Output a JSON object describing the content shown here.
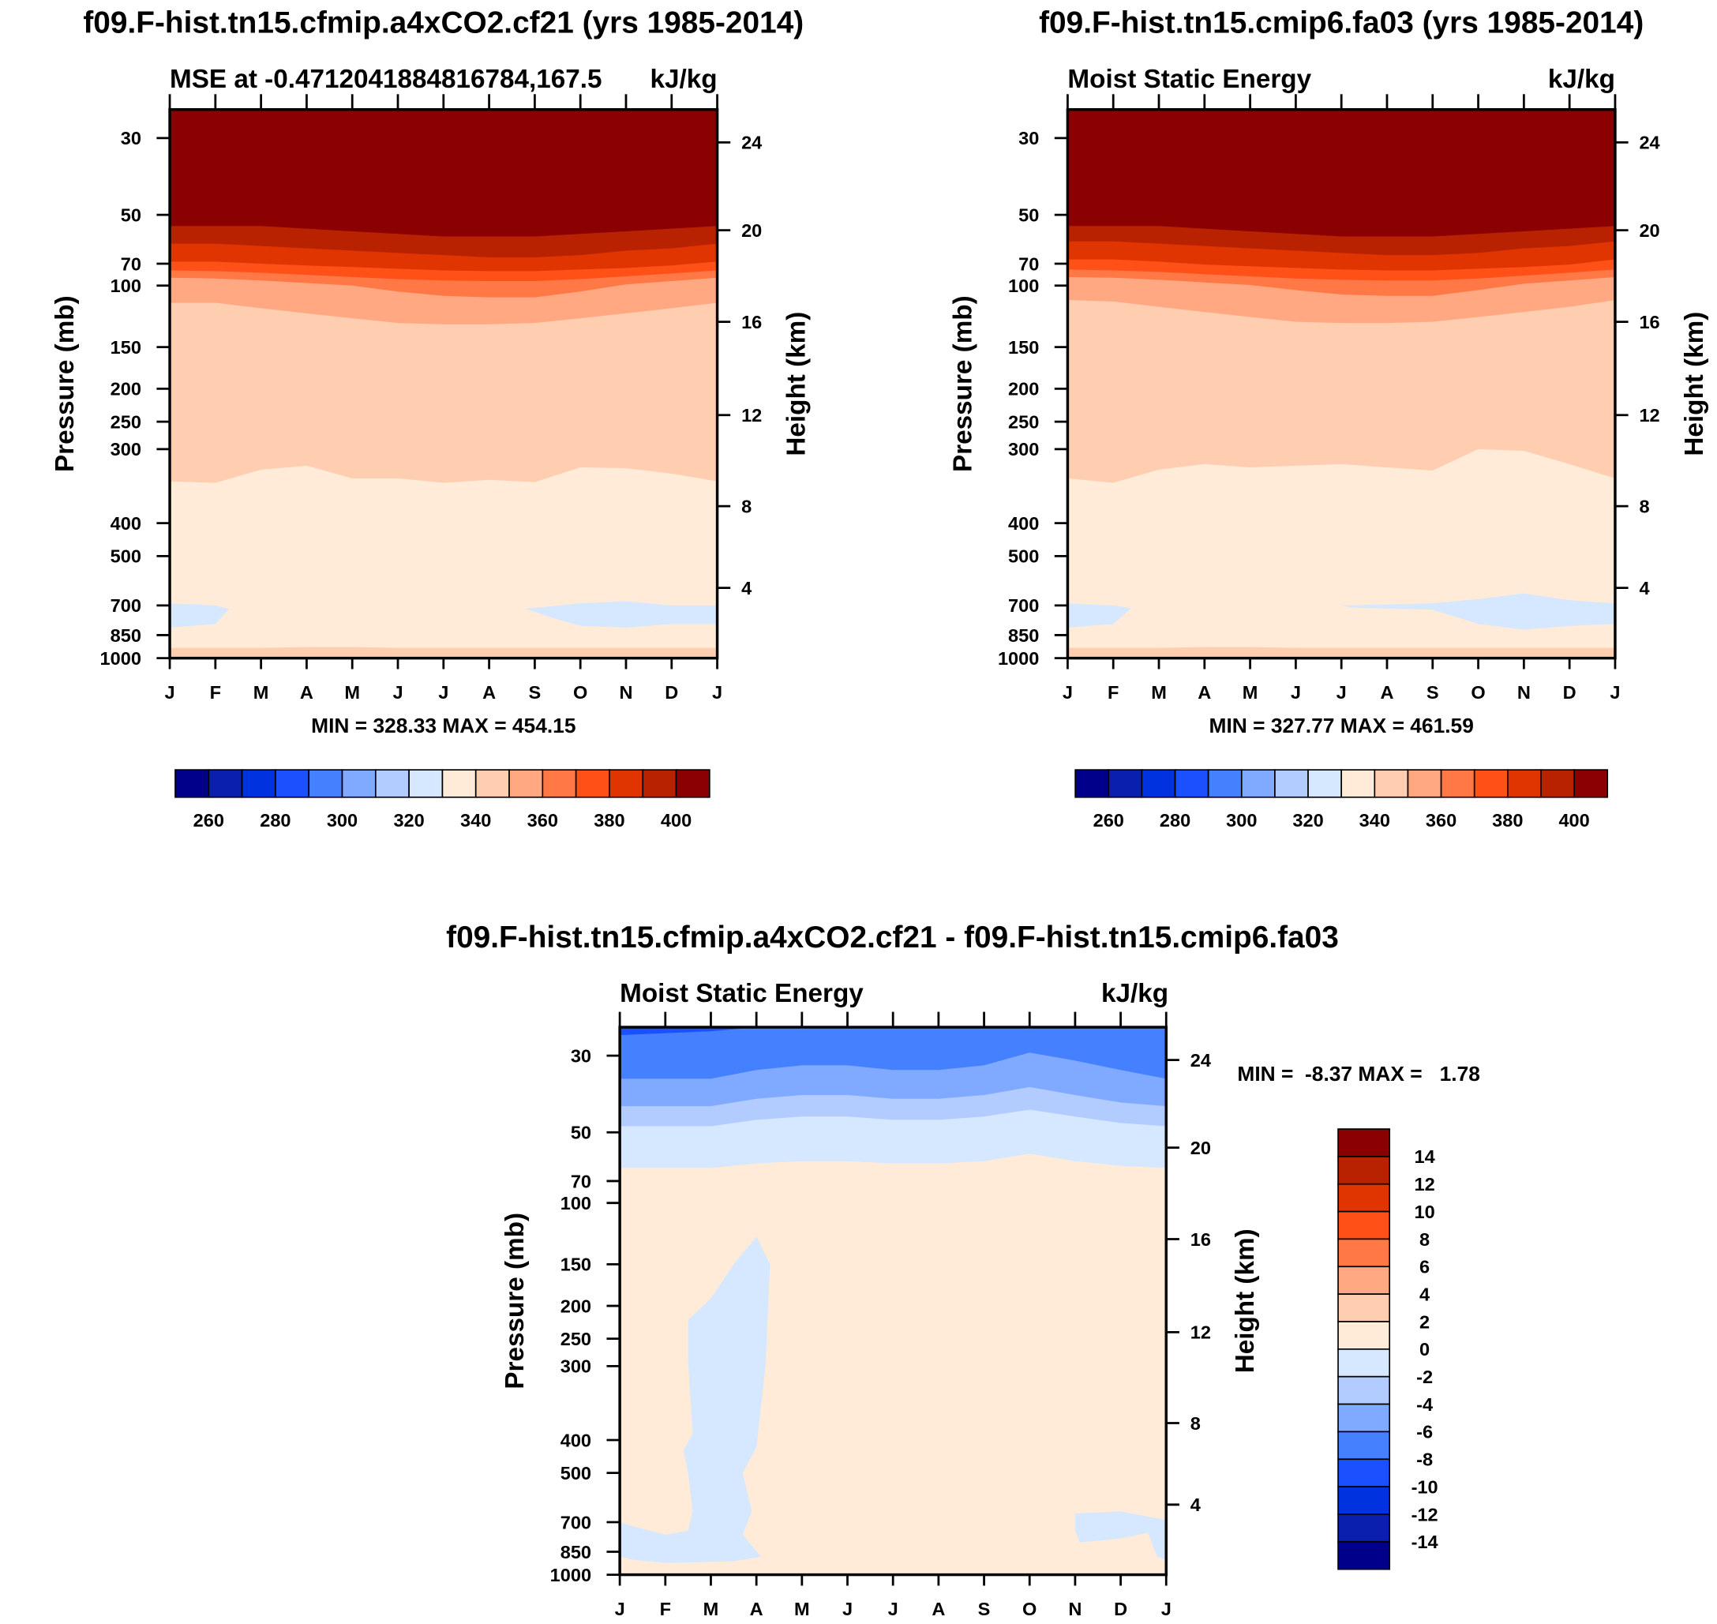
{
  "colors": [
    "#00008a",
    "#0a1fad",
    "#0032e0",
    "#1a50ff",
    "#4580ff",
    "#80aaff",
    "#b3ccff",
    "#d6e8ff",
    "#ffebd8",
    "#ffcdb0",
    "#ffa882",
    "#ff7845",
    "#ff5018",
    "#e03500",
    "#b82200",
    "#8b0000"
  ],
  "months": [
    "J",
    "F",
    "M",
    "A",
    "M",
    "J",
    "J",
    "A",
    "S",
    "O",
    "N",
    "D",
    "J"
  ],
  "pressure_ticks": [
    "30",
    "50",
    "70",
    "100",
    "150",
    "200",
    "250",
    "300",
    "400",
    "500",
    "700",
    "850",
    "1000"
  ],
  "height_ticks": [
    "24",
    "20",
    "16",
    "12",
    "8",
    "4"
  ],
  "ylabel": "Pressure (mb)",
  "y2label": "Height (km)",
  "chart_data": [
    {
      "type": "contour",
      "title": "f09.F-hist.tn15.cfmip.a4xCO2.cf21 (yrs 1985-2014)",
      "left_subtitle": "MSE at -0.4712041884816784,167.5",
      "right_subtitle": "kJ/kg",
      "stats": "MIN = 328.33 MAX = 454.15",
      "colorbar_labels": [
        "260",
        "280",
        "300",
        "320",
        "340",
        "360",
        "380",
        "400"
      ],
      "base_color": "#ffebd8",
      "layers": [
        {
          "color": "#ffcdb0",
          "pressure": [
            990,
            990,
            990,
            990,
            990,
            990,
            990,
            990,
            990,
            990,
            990,
            990,
            990
          ]
        },
        {
          "color": "#ffebd8",
          "pressure": [
            930,
            930,
            930,
            925,
            925,
            930,
            930,
            930,
            930,
            930,
            930,
            930,
            930
          ]
        },
        {
          "color": "#ffcdb0",
          "pressure": [
            340,
            342,
            325,
            320,
            336,
            336,
            342,
            338,
            341,
            322,
            323,
            330,
            340
          ]
        },
        {
          "color": "#ffa882",
          "pressure": [
            112,
            112,
            116,
            120,
            124,
            128,
            129,
            129,
            128,
            124,
            120,
            116,
            112
          ]
        },
        {
          "color": "#ff7845",
          "pressure": [
            88,
            89,
            92,
            96,
            100,
            104,
            107,
            108,
            108,
            104,
            98,
            93,
            88
          ]
        },
        {
          "color": "#ff5018",
          "pressure": [
            78,
            79,
            81,
            84,
            87,
            90,
            92,
            93,
            93,
            90,
            86,
            82,
            78
          ]
        },
        {
          "color": "#e03500",
          "pressure": [
            69,
            69,
            70,
            72,
            74,
            76,
            78,
            79,
            79,
            77,
            75,
            72,
            69
          ]
        },
        {
          "color": "#b82200",
          "pressure": [
            61,
            61,
            62,
            63,
            64,
            65,
            66,
            67,
            67,
            66,
            64,
            63,
            61
          ]
        },
        {
          "color": "#8b0000",
          "pressure": [
            54,
            54,
            54,
            55,
            56,
            57,
            58,
            58,
            58,
            57,
            56,
            55,
            54
          ]
        }
      ],
      "patches": [
        {
          "color": "#d6e8ff",
          "points": [
            [
              0,
              690
            ],
            [
              1,
              700
            ],
            [
              1.3,
              715
            ],
            [
              1,
              790
            ],
            [
              0,
              810
            ]
          ]
        },
        {
          "color": "#d6e8ff",
          "points": [
            [
              7.8,
              715
            ],
            [
              9,
              690
            ],
            [
              10,
              680
            ],
            [
              11,
              700
            ],
            [
              12,
              700
            ],
            [
              12,
              790
            ],
            [
              11,
              790
            ],
            [
              10,
              810
            ],
            [
              9,
              800
            ],
            [
              8.4,
              760
            ]
          ]
        }
      ]
    },
    {
      "type": "contour",
      "title": "f09.F-hist.tn15.cmip6.fa03 (yrs 1985-2014)",
      "left_subtitle": "Moist Static Energy",
      "right_subtitle": "kJ/kg",
      "stats": "MIN = 327.77 MAX = 461.59",
      "colorbar_labels": [
        "260",
        "280",
        "300",
        "320",
        "340",
        "360",
        "380",
        "400"
      ],
      "base_color": "#ffebd8",
      "layers": [
        {
          "color": "#ffcdb0",
          "pressure": [
            990,
            990,
            990,
            990,
            990,
            990,
            990,
            990,
            990,
            990,
            990,
            990,
            990
          ]
        },
        {
          "color": "#ffebd8",
          "pressure": [
            930,
            930,
            930,
            925,
            925,
            930,
            930,
            930,
            930,
            930,
            930,
            930,
            930
          ]
        },
        {
          "color": "#ffcdb0",
          "pressure": [
            336,
            342,
            325,
            318,
            322,
            320,
            318,
            322,
            326,
            300,
            302,
            318,
            336
          ]
        },
        {
          "color": "#ffa882",
          "pressure": [
            110,
            111,
            115,
            119,
            123,
            127,
            128,
            128,
            127,
            123,
            119,
            115,
            110
          ]
        },
        {
          "color": "#ff7845",
          "pressure": [
            87,
            88,
            91,
            95,
            99,
            103,
            106,
            107,
            107,
            103,
            97,
            92,
            87
          ]
        },
        {
          "color": "#ff5018",
          "pressure": [
            77,
            78,
            80,
            83,
            86,
            89,
            91,
            92,
            92,
            89,
            85,
            81,
            77
          ]
        },
        {
          "color": "#e03500",
          "pressure": [
            68,
            68,
            69,
            71,
            73,
            75,
            77,
            78,
            78,
            76,
            74,
            71,
            68
          ]
        },
        {
          "color": "#b82200",
          "pressure": [
            60,
            60,
            61,
            62,
            63,
            64,
            65,
            66,
            66,
            65,
            63,
            62,
            60
          ]
        },
        {
          "color": "#8b0000",
          "pressure": [
            54,
            54,
            54,
            55,
            56,
            57,
            58,
            58,
            58,
            57,
            56,
            55,
            54
          ]
        }
      ],
      "patches": [
        {
          "color": "#d6e8ff",
          "points": [
            [
              0,
              690
            ],
            [
              1,
              700
            ],
            [
              1.4,
              712
            ],
            [
              1,
              790
            ],
            [
              0,
              810
            ]
          ]
        },
        {
          "color": "#d6e8ff",
          "points": [
            [
              6,
              700
            ],
            [
              8,
              690
            ],
            [
              9,
              670
            ],
            [
              10,
              645
            ],
            [
              11,
              675
            ],
            [
              12,
              690
            ],
            [
              12,
              790
            ],
            [
              11,
              800
            ],
            [
              10,
              820
            ],
            [
              9,
              790
            ],
            [
              8,
              720
            ],
            [
              6.2,
              710
            ]
          ]
        }
      ]
    },
    {
      "type": "contour",
      "title": "f09.F-hist.tn15.cfmip.a4xCO2.cf21 - f09.F-hist.tn15.cmip6.fa03",
      "left_subtitle": "Moist Static Energy",
      "right_subtitle": "kJ/kg",
      "stats": "MIN =  -8.37 MAX =   1.78",
      "colorbar_labels": [
        "14",
        "12",
        "10",
        "8",
        "6",
        "4",
        "2",
        "0",
        "-2",
        "-4",
        "-6",
        "-8",
        "-10",
        "-12",
        "-14"
      ],
      "base_color": "#ffebd8",
      "layers": [
        {
          "color": "#d6e8ff",
          "pressure": [
            64,
            64,
            64,
            62,
            61,
            61,
            62,
            62,
            61,
            58,
            61,
            63,
            64
          ]
        },
        {
          "color": "#b3ccff",
          "pressure": [
            48,
            48,
            48,
            46,
            45,
            45,
            46,
            46,
            45,
            43,
            45,
            47,
            48
          ]
        },
        {
          "color": "#80aaff",
          "pressure": [
            42,
            42,
            42,
            40,
            39,
            39,
            40,
            40,
            39,
            37,
            39,
            41,
            42
          ]
        },
        {
          "color": "#4580ff",
          "pressure": [
            35,
            35,
            35,
            33,
            32,
            32,
            33,
            33,
            32,
            29,
            31,
            33,
            35
          ]
        },
        {
          "color": "#1a50ff",
          "pressure": [
            24,
            23.5,
            23,
            22,
            22,
            22,
            22,
            22,
            22,
            22,
            22,
            22,
            22
          ]
        }
      ],
      "patches": [
        {
          "color": "#d6e8ff",
          "points": [
            [
              0,
              700
            ],
            [
              0.3,
              720
            ],
            [
              1,
              760
            ],
            [
              1.5,
              740
            ],
            [
              1.6,
              650
            ],
            [
              1.5,
              500
            ],
            [
              1.4,
              430
            ],
            [
              1.6,
              390
            ],
            [
              1.5,
              290
            ],
            [
              1.5,
              220
            ],
            [
              2,
              190
            ],
            [
              2.5,
              150
            ],
            [
              3,
              125
            ],
            [
              3.3,
              150
            ],
            [
              3.2,
              300
            ],
            [
              3,
              420
            ],
            [
              2.7,
              500
            ],
            [
              2.9,
              650
            ],
            [
              2.7,
              760
            ],
            [
              3.1,
              880
            ],
            [
              2.5,
              910
            ],
            [
              1,
              920
            ],
            [
              0.3,
              900
            ],
            [
              0,
              880
            ]
          ]
        },
        {
          "color": "#d6e8ff",
          "points": [
            [
              10,
              660
            ],
            [
              11,
              650
            ],
            [
              12,
              690
            ],
            [
              12,
              900
            ],
            [
              11.8,
              880
            ],
            [
              11.6,
              750
            ],
            [
              11,
              780
            ],
            [
              10.1,
              800
            ],
            [
              10,
              740
            ]
          ]
        }
      ]
    }
  ]
}
